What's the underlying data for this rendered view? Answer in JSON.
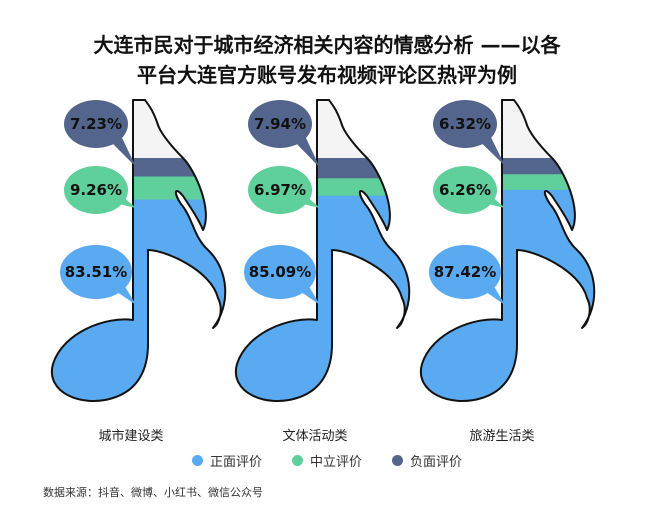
{
  "title": {
    "line1": "大连市民对于城市经济相关内容的情感分析 ——以各",
    "line2": "平台大连官方账号发布视频评论区热评为例"
  },
  "chart_data": {
    "type": "bar",
    "stacked": true,
    "categories": [
      "城市建设类",
      "文体活动类",
      "旅游生活类"
    ],
    "series": [
      {
        "name": "正面评价",
        "values": [
          83.51,
          85.09,
          87.42
        ],
        "labels": [
          "83.51%",
          "85.09%",
          "87.42%"
        ]
      },
      {
        "name": "中立评价",
        "values": [
          9.26,
          6.97,
          6.26
        ],
        "labels": [
          "9.26%",
          "6.97%",
          "6.26%"
        ]
      },
      {
        "name": "负面评价",
        "values": [
          7.23,
          7.94,
          6.32
        ],
        "labels": [
          "7.23%",
          "7.94%",
          "6.32%"
        ]
      }
    ],
    "unit": "%",
    "legend_position": "bottom"
  },
  "colors": {
    "positive": "#5aaaf2",
    "neutral": "#5fcf9c",
    "negative": "#53658c",
    "outline": "#111111",
    "label_text": "#111111",
    "note_top": "#f4f4f4"
  },
  "source": "数据来源：抖音、微博、小红书、微信公众号"
}
